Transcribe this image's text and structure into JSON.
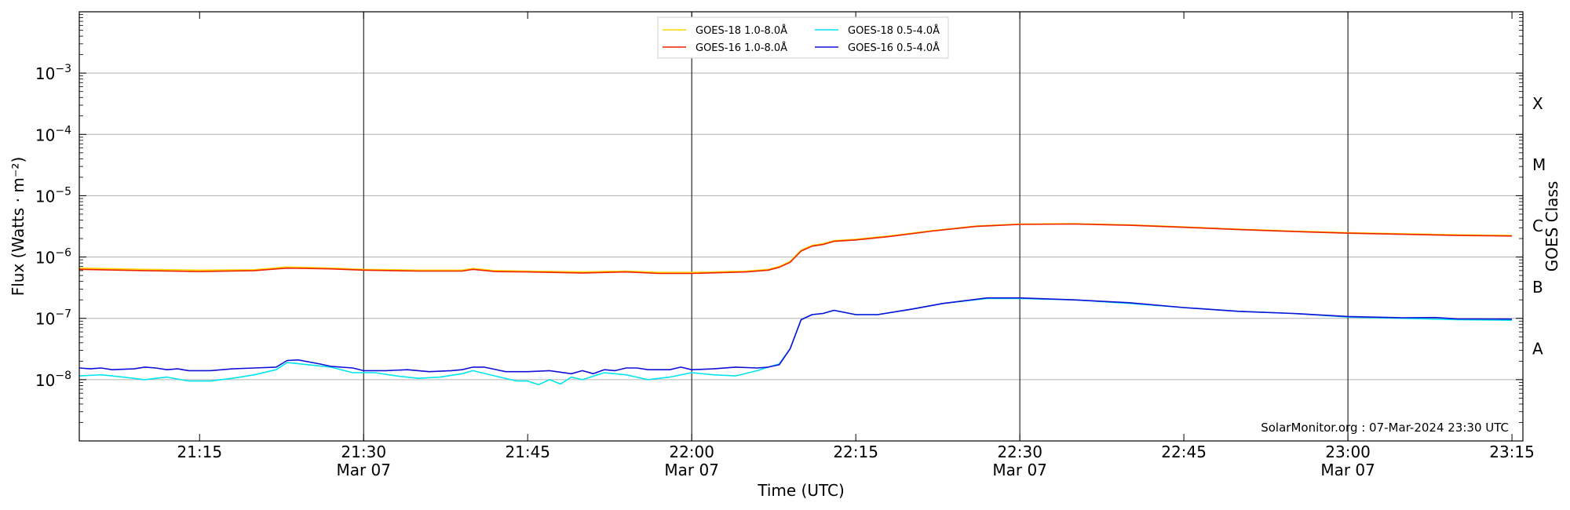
{
  "chart_data": {
    "type": "line",
    "xlabel": "Time (UTC)",
    "ylabel": "Flux (Watts · m⁻²)",
    "ylabel_right": "GOES Class",
    "y_scale": "log",
    "ylim": [
      1e-09,
      0.01
    ],
    "xlim": [
      "2024-03-07T21:04:00",
      "2024-03-07T23:16:00"
    ],
    "grid": "horizontal at decades",
    "vertical_lines": [
      "21:30",
      "22:00",
      "22:30",
      "23:00"
    ],
    "legend_position": "top-center",
    "watermark": "SolarMonitor.org : 07-Mar-2024 23:30 UTC",
    "x_ticks": [
      {
        "t": "21:15",
        "label": "21:15",
        "sub": ""
      },
      {
        "t": "21:30",
        "label": "21:30",
        "sub": "Mar 07"
      },
      {
        "t": "21:45",
        "label": "21:45",
        "sub": ""
      },
      {
        "t": "22:00",
        "label": "22:00",
        "sub": "Mar 07"
      },
      {
        "t": "22:15",
        "label": "22:15",
        "sub": ""
      },
      {
        "t": "22:30",
        "label": "22:30",
        "sub": "Mar 07"
      },
      {
        "t": "22:45",
        "label": "22:45",
        "sub": ""
      },
      {
        "t": "23:00",
        "label": "23:00",
        "sub": "Mar 07"
      },
      {
        "t": "23:15",
        "label": "23:15",
        "sub": ""
      }
    ],
    "y_ticks": [
      {
        "value": 1e-08,
        "exp": "−8"
      },
      {
        "value": 1e-07,
        "exp": "−7"
      },
      {
        "value": 1e-06,
        "exp": "−6"
      },
      {
        "value": 1e-05,
        "exp": "−5"
      },
      {
        "value": 0.0001,
        "exp": "−4"
      },
      {
        "value": 0.001,
        "exp": "−3"
      }
    ],
    "goes_classes": [
      {
        "label": "A",
        "value": 3.2e-08
      },
      {
        "label": "B",
        "value": 3.2e-07
      },
      {
        "label": "C",
        "value": 3.2e-06
      },
      {
        "label": "M",
        "value": 3.2e-05
      },
      {
        "label": "X",
        "value": 0.00032
      }
    ],
    "series": [
      {
        "name": "GOES-18 1.0-8.0Å",
        "color": "#ffd700",
        "points": [
          [
            "21:04",
            6.6e-07
          ],
          [
            "21:10",
            6.3e-07
          ],
          [
            "21:15",
            6.1e-07
          ],
          [
            "21:20",
            6.2e-07
          ],
          [
            "21:23",
            6.9e-07
          ],
          [
            "21:27",
            6.6e-07
          ],
          [
            "21:30",
            6.3e-07
          ],
          [
            "21:35",
            6.1e-07
          ],
          [
            "21:39",
            6.1e-07
          ],
          [
            "21:40",
            6.5e-07
          ],
          [
            "21:42",
            6e-07
          ],
          [
            "21:45",
            5.9e-07
          ],
          [
            "21:50",
            5.7e-07
          ],
          [
            "21:54",
            5.9e-07
          ],
          [
            "21:57",
            5.6e-07
          ],
          [
            "22:00",
            5.6e-07
          ],
          [
            "22:05",
            5.9e-07
          ],
          [
            "22:07",
            6.3e-07
          ],
          [
            "22:08",
            7e-07
          ],
          [
            "22:09",
            8.5e-07
          ],
          [
            "22:10",
            1.3e-06
          ],
          [
            "22:11",
            1.55e-06
          ],
          [
            "22:12",
            1.65e-06
          ],
          [
            "22:13",
            1.85e-06
          ],
          [
            "22:15",
            1.95e-06
          ],
          [
            "22:18",
            2.2e-06
          ],
          [
            "22:22",
            2.7e-06
          ],
          [
            "22:26",
            3.2e-06
          ],
          [
            "22:30",
            3.45e-06
          ],
          [
            "22:35",
            3.5e-06
          ],
          [
            "22:40",
            3.35e-06
          ],
          [
            "22:45",
            3.1e-06
          ],
          [
            "22:50",
            2.85e-06
          ],
          [
            "22:55",
            2.65e-06
          ],
          [
            "23:00",
            2.5e-06
          ],
          [
            "23:05",
            2.4e-06
          ],
          [
            "23:10",
            2.3e-06
          ],
          [
            "23:15",
            2.25e-06
          ]
        ]
      },
      {
        "name": "GOES-16 1.0-8.0Å",
        "color": "#ee2200",
        "points": [
          [
            "21:04",
            6.3e-07
          ],
          [
            "21:10",
            6e-07
          ],
          [
            "21:15",
            5.8e-07
          ],
          [
            "21:20",
            6e-07
          ],
          [
            "21:23",
            6.6e-07
          ],
          [
            "21:27",
            6.4e-07
          ],
          [
            "21:30",
            6.1e-07
          ],
          [
            "21:35",
            5.9e-07
          ],
          [
            "21:39",
            5.9e-07
          ],
          [
            "21:40",
            6.3e-07
          ],
          [
            "21:42",
            5.8e-07
          ],
          [
            "21:45",
            5.7e-07
          ],
          [
            "21:50",
            5.5e-07
          ],
          [
            "21:54",
            5.7e-07
          ],
          [
            "21:57",
            5.4e-07
          ],
          [
            "22:00",
            5.4e-07
          ],
          [
            "22:05",
            5.7e-07
          ],
          [
            "22:07",
            6.1e-07
          ],
          [
            "22:08",
            6.8e-07
          ],
          [
            "22:09",
            8.2e-07
          ],
          [
            "22:10",
            1.25e-06
          ],
          [
            "22:11",
            1.5e-06
          ],
          [
            "22:12",
            1.6e-06
          ],
          [
            "22:13",
            1.8e-06
          ],
          [
            "22:15",
            1.9e-06
          ],
          [
            "22:18",
            2.15e-06
          ],
          [
            "22:22",
            2.65e-06
          ],
          [
            "22:26",
            3.15e-06
          ],
          [
            "22:30",
            3.4e-06
          ],
          [
            "22:35",
            3.45e-06
          ],
          [
            "22:40",
            3.3e-06
          ],
          [
            "22:45",
            3.05e-06
          ],
          [
            "22:50",
            2.8e-06
          ],
          [
            "22:55",
            2.6e-06
          ],
          [
            "23:00",
            2.45e-06
          ],
          [
            "23:05",
            2.35e-06
          ],
          [
            "23:10",
            2.25e-06
          ],
          [
            "23:15",
            2.2e-06
          ]
        ]
      },
      {
        "name": "GOES-18 0.5-4.0Å",
        "color": "#00e5ee",
        "points": [
          [
            "21:04",
            1.15e-08
          ],
          [
            "21:06",
            1.2e-08
          ],
          [
            "21:08",
            1.1e-08
          ],
          [
            "21:10",
            1e-08
          ],
          [
            "21:12",
            1.1e-08
          ],
          [
            "21:14",
            9.5e-09
          ],
          [
            "21:16",
            9.5e-09
          ],
          [
            "21:18",
            1.05e-08
          ],
          [
            "21:20",
            1.2e-08
          ],
          [
            "21:22",
            1.45e-08
          ],
          [
            "21:23",
            1.9e-08
          ],
          [
            "21:25",
            1.75e-08
          ],
          [
            "21:27",
            1.6e-08
          ],
          [
            "21:29",
            1.3e-08
          ],
          [
            "21:31",
            1.3e-08
          ],
          [
            "21:33",
            1.15e-08
          ],
          [
            "21:35",
            1.05e-08
          ],
          [
            "21:37",
            1.1e-08
          ],
          [
            "21:39",
            1.25e-08
          ],
          [
            "21:40",
            1.4e-08
          ],
          [
            "21:42",
            1.15e-08
          ],
          [
            "21:44",
            9.5e-09
          ],
          [
            "21:45",
            9.5e-09
          ],
          [
            "21:46",
            8.3e-09
          ],
          [
            "21:47",
            1e-08
          ],
          [
            "21:48",
            8.5e-09
          ],
          [
            "21:49",
            1.1e-08
          ],
          [
            "21:50",
            1e-08
          ],
          [
            "21:52",
            1.3e-08
          ],
          [
            "21:54",
            1.2e-08
          ],
          [
            "21:56",
            1e-08
          ],
          [
            "21:58",
            1.1e-08
          ],
          [
            "22:00",
            1.3e-08
          ],
          [
            "22:02",
            1.2e-08
          ],
          [
            "22:04",
            1.15e-08
          ],
          [
            "22:06",
            1.4e-08
          ],
          [
            "22:07",
            1.6e-08
          ],
          [
            "22:08",
            1.8e-08
          ],
          [
            "22:09",
            3.2e-08
          ],
          [
            "22:10",
            9.5e-08
          ],
          [
            "22:11",
            1.15e-07
          ],
          [
            "22:12",
            1.2e-07
          ],
          [
            "22:13",
            1.35e-07
          ],
          [
            "22:15",
            1.15e-07
          ],
          [
            "22:17",
            1.15e-07
          ],
          [
            "22:20",
            1.4e-07
          ],
          [
            "22:23",
            1.75e-07
          ],
          [
            "22:27",
            2.1e-07
          ],
          [
            "22:30",
            2.1e-07
          ],
          [
            "22:35",
            2e-07
          ],
          [
            "22:40",
            1.75e-07
          ],
          [
            "22:45",
            1.5e-07
          ],
          [
            "22:50",
            1.3e-07
          ],
          [
            "22:55",
            1.2e-07
          ],
          [
            "23:00",
            1.05e-07
          ],
          [
            "23:05",
            1e-07
          ],
          [
            "23:10",
            9.5e-08
          ],
          [
            "23:15",
            9.3e-08
          ]
        ]
      },
      {
        "name": "GOES-16 0.5-4.0Å",
        "color": "#1010d8",
        "points": [
          [
            "21:04",
            1.55e-08
          ],
          [
            "21:05",
            1.5e-08
          ],
          [
            "21:06",
            1.55e-08
          ],
          [
            "21:07",
            1.45e-08
          ],
          [
            "21:09",
            1.5e-08
          ],
          [
            "21:10",
            1.6e-08
          ],
          [
            "21:11",
            1.55e-08
          ],
          [
            "21:12",
            1.45e-08
          ],
          [
            "21:13",
            1.5e-08
          ],
          [
            "21:14",
            1.4e-08
          ],
          [
            "21:16",
            1.4e-08
          ],
          [
            "21:18",
            1.5e-08
          ],
          [
            "21:20",
            1.55e-08
          ],
          [
            "21:22",
            1.6e-08
          ],
          [
            "21:23",
            2.05e-08
          ],
          [
            "21:24",
            2.1e-08
          ],
          [
            "21:26",
            1.8e-08
          ],
          [
            "21:27",
            1.65e-08
          ],
          [
            "21:29",
            1.55e-08
          ],
          [
            "21:30",
            1.4e-08
          ],
          [
            "21:32",
            1.4e-08
          ],
          [
            "21:34",
            1.45e-08
          ],
          [
            "21:36",
            1.35e-08
          ],
          [
            "21:38",
            1.4e-08
          ],
          [
            "21:39",
            1.45e-08
          ],
          [
            "21:40",
            1.6e-08
          ],
          [
            "21:41",
            1.6e-08
          ],
          [
            "21:43",
            1.35e-08
          ],
          [
            "21:45",
            1.35e-08
          ],
          [
            "21:47",
            1.4e-08
          ],
          [
            "21:49",
            1.25e-08
          ],
          [
            "21:50",
            1.4e-08
          ],
          [
            "21:51",
            1.25e-08
          ],
          [
            "21:52",
            1.45e-08
          ],
          [
            "21:53",
            1.4e-08
          ],
          [
            "21:54",
            1.55e-08
          ],
          [
            "21:55",
            1.55e-08
          ],
          [
            "21:56",
            1.45e-08
          ],
          [
            "21:58",
            1.45e-08
          ],
          [
            "21:59",
            1.6e-08
          ],
          [
            "22:00",
            1.45e-08
          ],
          [
            "22:02",
            1.5e-08
          ],
          [
            "22:04",
            1.6e-08
          ],
          [
            "22:06",
            1.55e-08
          ],
          [
            "22:07",
            1.6e-08
          ],
          [
            "22:08",
            1.75e-08
          ],
          [
            "22:09",
            3.2e-08
          ],
          [
            "22:10",
            9.5e-08
          ],
          [
            "22:11",
            1.15e-07
          ],
          [
            "22:12",
            1.2e-07
          ],
          [
            "22:13",
            1.35e-07
          ],
          [
            "22:15",
            1.15e-07
          ],
          [
            "22:17",
            1.15e-07
          ],
          [
            "22:20",
            1.4e-07
          ],
          [
            "22:23",
            1.75e-07
          ],
          [
            "22:27",
            2.15e-07
          ],
          [
            "22:30",
            2.15e-07
          ],
          [
            "22:35",
            2e-07
          ],
          [
            "22:40",
            1.8e-07
          ],
          [
            "22:45",
            1.5e-07
          ],
          [
            "22:50",
            1.3e-07
          ],
          [
            "22:55",
            1.2e-07
          ],
          [
            "23:00",
            1.07e-07
          ],
          [
            "23:05",
            1.02e-07
          ],
          [
            "23:08",
            1.03e-07
          ],
          [
            "23:10",
            9.8e-08
          ],
          [
            "23:15",
            9.7e-08
          ]
        ]
      }
    ]
  }
}
